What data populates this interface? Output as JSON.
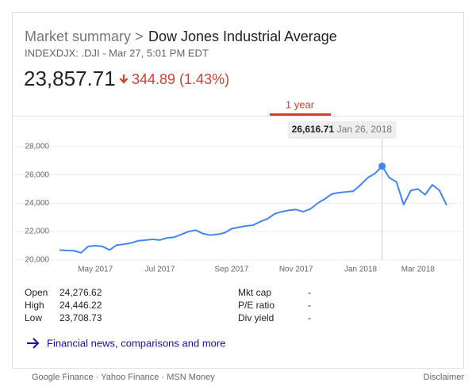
{
  "header": {
    "breadcrumb": "Market summary >",
    "title": "Dow Jones Industrial Average",
    "subtitle": "INDEXDJX: .DJI - Mar 27, 5:01 PM EDT",
    "price": "23,857.71",
    "change": "344.89 (1.43%)"
  },
  "tabs": {
    "active": "1 year"
  },
  "chart_data": {
    "type": "line",
    "categories": [
      null,
      null,
      null,
      null,
      null,
      "May 2017",
      null,
      null,
      null,
      null,
      null,
      null,
      null,
      null,
      "Jul 2017",
      null,
      null,
      null,
      null,
      null,
      null,
      null,
      null,
      null,
      "Sep 2017",
      null,
      null,
      null,
      null,
      null,
      null,
      null,
      null,
      "Nov 2017",
      null,
      null,
      null,
      null,
      null,
      null,
      null,
      null,
      "Jan 2018",
      null,
      null,
      null,
      null,
      null,
      null,
      null,
      "Mar 2018",
      null,
      null,
      null,
      null
    ],
    "series": [
      {
        "name": "Dow Jones Industrial Average",
        "color": "#4285f4",
        "values": [
          20700,
          20660,
          20650,
          20500,
          20950,
          21000,
          20950,
          20700,
          21050,
          21100,
          21200,
          21350,
          21400,
          21450,
          21400,
          21550,
          21600,
          21800,
          22000,
          22100,
          21850,
          21750,
          21800,
          21900,
          22200,
          22300,
          22400,
          22450,
          22700,
          22900,
          23250,
          23400,
          23500,
          23550,
          23400,
          23600,
          24000,
          24300,
          24650,
          24750,
          24800,
          24850,
          25300,
          25800,
          26100,
          26616.71,
          25800,
          25500,
          23900,
          24900,
          25000,
          24600,
          25300,
          24900,
          23857.71
        ],
        "value_labels": [
          null,
          null,
          null,
          null,
          null,
          null,
          null,
          null,
          null,
          null,
          null,
          null,
          null,
          null,
          null,
          null,
          null,
          null,
          null,
          null,
          null,
          null,
          null,
          null,
          null,
          null,
          null,
          null,
          null,
          null,
          null,
          null,
          null,
          null,
          null,
          null,
          null,
          null,
          null,
          null,
          null,
          null,
          null,
          null,
          null,
          "26,616.71",
          null,
          null,
          null,
          null,
          null,
          null,
          null,
          null,
          null
        ]
      }
    ],
    "annotation": "Jan 26, 2018",
    "ylim": [
      19600,
      29000
    ],
    "yticks": [
      {
        "value": 20000,
        "label": "20,000"
      },
      {
        "value": 22000,
        "label": "22,000"
      },
      {
        "value": 24000,
        "label": "24,000"
      },
      {
        "value": 26000,
        "label": "26,000"
      },
      {
        "value": 28000,
        "label": "28,000"
      }
    ],
    "grid": true
  },
  "stats": {
    "rows": [
      [
        "Open",
        "24,276.62",
        "Mkt cap",
        "-"
      ],
      [
        "High",
        "24,446.22",
        "P/E ratio",
        "-"
      ],
      [
        "Low",
        "23,708.73",
        "Div yield",
        "-"
      ]
    ]
  },
  "link": "Financial news, comparisons and more",
  "footer": {
    "sources": "Google Finance · Yahoo Finance · MSN Money",
    "disclaimer": "Disclaimer"
  }
}
